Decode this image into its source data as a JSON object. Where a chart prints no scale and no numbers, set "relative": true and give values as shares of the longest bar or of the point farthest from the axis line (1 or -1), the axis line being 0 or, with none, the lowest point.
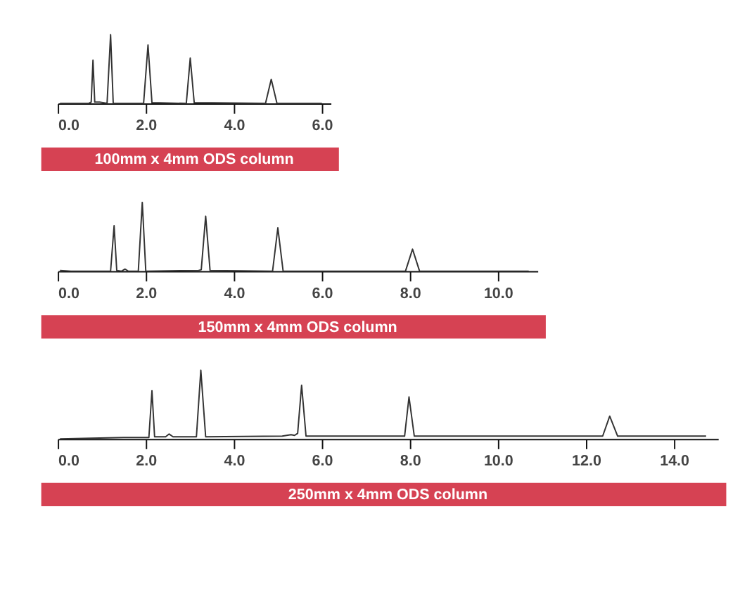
{
  "chart_data": [
    {
      "type": "line",
      "relative": true,
      "xlabel": "100mm x 4mm ODS column",
      "xlim": [
        0,
        6.2
      ],
      "xticks": [
        {
          "value": 0,
          "label": "0.0"
        },
        {
          "value": 2,
          "label": "2.0"
        },
        {
          "value": 4,
          "label": "4.0"
        },
        {
          "value": 6,
          "label": "6.0"
        }
      ],
      "series": [
        {
          "color": "#333333",
          "x": [
            0.05,
            0.7,
            0.76,
            0.8,
            0.84,
            0.95,
            1.12,
            1.2,
            1.26,
            1.95,
            2.05,
            2.14,
            2.92,
            3.01,
            3.1,
            4.72,
            4.85,
            4.98,
            6.0
          ],
          "values": [
            0,
            0,
            0.02,
            0.63,
            0.02,
            0.02,
            0,
            1.0,
            0,
            0,
            0.85,
            0.01,
            0,
            0.66,
            0.01,
            0,
            0.35,
            0,
            0
          ]
        }
      ]
    },
    {
      "type": "line",
      "relative": true,
      "xlabel": "150mm x 4mm ODS column",
      "xlim": [
        0,
        10.9
      ],
      "xticks": [
        {
          "value": 0,
          "label": "0.0"
        },
        {
          "value": 2,
          "label": "2.0"
        },
        {
          "value": 4,
          "label": "4.0"
        },
        {
          "value": 6,
          "label": "6.0"
        },
        {
          "value": 8,
          "label": "8.0"
        },
        {
          "value": 10,
          "label": "10.0"
        }
      ],
      "series": [
        {
          "color": "#333333",
          "x": [
            0.05,
            0.3,
            1.2,
            1.28,
            1.34,
            1.45,
            1.53,
            1.6,
            1.83,
            1.92,
            2.0,
            3.2,
            3.26,
            3.36,
            3.46,
            4.88,
            5.0,
            5.12,
            7.9,
            8.06,
            8.22,
            10.7
          ],
          "values": [
            0.01,
            0,
            0,
            0.66,
            0.01,
            0,
            0.03,
            0,
            0,
            1.0,
            0,
            0.01,
            0.02,
            0.8,
            0.01,
            0,
            0.63,
            0,
            0,
            0.32,
            0,
            0
          ]
        }
      ]
    },
    {
      "type": "line",
      "relative": true,
      "xlabel": "250mm x 4mm ODS column",
      "xlim": [
        0,
        15.0
      ],
      "xticks": [
        {
          "value": 0,
          "label": "0.0"
        },
        {
          "value": 2,
          "label": "2.0"
        },
        {
          "value": 4,
          "label": "4.0"
        },
        {
          "value": 6,
          "label": "6.0"
        },
        {
          "value": 8,
          "label": "8.0"
        },
        {
          "value": 10,
          "label": "10.0"
        },
        {
          "value": 12,
          "label": "12.0"
        },
        {
          "value": 14,
          "label": "14.0"
        }
      ],
      "series": [
        {
          "color": "#333333",
          "x": [
            0.05,
            1.5,
            2.07,
            2.14,
            2.2,
            2.45,
            2.53,
            2.62,
            3.15,
            3.25,
            3.36,
            5.1,
            5.3,
            5.38,
            5.45,
            5.54,
            5.64,
            7.3,
            7.88,
            7.98,
            8.1,
            12.38,
            12.54,
            12.72,
            14.73
          ],
          "values": [
            0,
            0.02,
            0.02,
            0.7,
            0.03,
            0.03,
            0.07,
            0.03,
            0.03,
            1.0,
            0.03,
            0.04,
            0.06,
            0.05,
            0.08,
            0.78,
            0.04,
            0.04,
            0.04,
            0.61,
            0.04,
            0.04,
            0.33,
            0.04,
            0.04
          ]
        }
      ]
    }
  ]
}
